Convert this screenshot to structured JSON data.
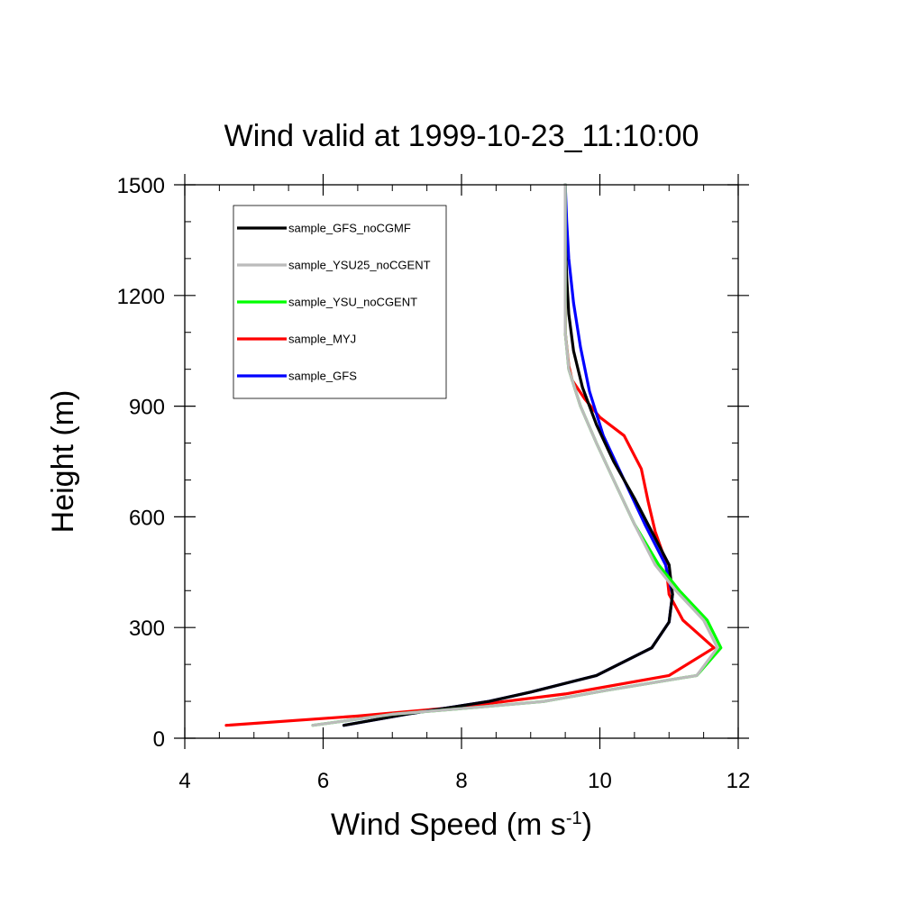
{
  "chart_data": {
    "type": "line",
    "title": "Wind valid at 1999-10-23_11:10:00",
    "xlabel": "Wind Speed (m s",
    "xlabel_superscript": "-1",
    "xlabel_suffix": ")",
    "ylabel": "Height (m)",
    "xlim": [
      4,
      12
    ],
    "ylim": [
      0,
      1500
    ],
    "xticks": [
      4,
      6,
      8,
      10,
      12
    ],
    "yticks": [
      0,
      300,
      600,
      900,
      1200,
      1500
    ],
    "xtick_labels": [
      "4",
      "6",
      "8",
      "10",
      "12"
    ],
    "ytick_labels": [
      "0",
      "300",
      "600",
      "900",
      "1200",
      "1500"
    ],
    "legend_position": "top-left",
    "grid": false,
    "series": [
      {
        "name": "sample_GFS_noCGMF",
        "color": "#000000",
        "points": [
          [
            6.3,
            35
          ],
          [
            7.2,
            65
          ],
          [
            8.4,
            100
          ],
          [
            9.0,
            125
          ],
          [
            9.95,
            170
          ],
          [
            10.75,
            245
          ],
          [
            11.0,
            315
          ],
          [
            11.05,
            390
          ],
          [
            11.0,
            470
          ],
          [
            10.75,
            560
          ],
          [
            10.5,
            650
          ],
          [
            10.2,
            750
          ],
          [
            9.95,
            850
          ],
          [
            9.75,
            950
          ],
          [
            9.62,
            1050
          ],
          [
            9.55,
            1150
          ],
          [
            9.52,
            1250
          ],
          [
            9.5,
            1350
          ],
          [
            9.5,
            1500
          ]
        ]
      },
      {
        "name": "sample_YSU25_noCGENT",
        "color": "#bbbbbb",
        "points": [
          [
            5.85,
            35
          ],
          [
            7.0,
            65
          ],
          [
            8.3,
            85
          ],
          [
            9.2,
            100
          ],
          [
            10.1,
            130
          ],
          [
            11.4,
            170
          ],
          [
            11.7,
            245
          ],
          [
            11.5,
            320
          ],
          [
            11.1,
            400
          ],
          [
            10.8,
            470
          ],
          [
            10.5,
            580
          ],
          [
            10.2,
            700
          ],
          [
            9.95,
            800
          ],
          [
            9.72,
            900
          ],
          [
            9.55,
            1000
          ],
          [
            9.5,
            1100
          ],
          [
            9.5,
            1300
          ],
          [
            9.5,
            1500
          ]
        ]
      },
      {
        "name": "sample_YSU_noCGENT",
        "color": "#00ff00",
        "points": [
          [
            5.85,
            35
          ],
          [
            7.0,
            65
          ],
          [
            8.3,
            85
          ],
          [
            9.2,
            100
          ],
          [
            10.1,
            130
          ],
          [
            11.4,
            170
          ],
          [
            11.75,
            245
          ],
          [
            11.55,
            320
          ],
          [
            11.15,
            400
          ],
          [
            10.85,
            470
          ],
          [
            10.5,
            580
          ],
          [
            10.2,
            700
          ],
          [
            9.95,
            800
          ],
          [
            9.72,
            900
          ],
          [
            9.55,
            1000
          ],
          [
            9.5,
            1100
          ],
          [
            9.5,
            1300
          ],
          [
            9.5,
            1500
          ]
        ]
      },
      {
        "name": "sample_MYJ",
        "color": "#ff0000",
        "points": [
          [
            4.6,
            35
          ],
          [
            6.5,
            60
          ],
          [
            8.0,
            85
          ],
          [
            9.5,
            120
          ],
          [
            11.0,
            170
          ],
          [
            11.65,
            245
          ],
          [
            11.2,
            320
          ],
          [
            11.0,
            390
          ],
          [
            10.95,
            480
          ],
          [
            10.8,
            560
          ],
          [
            10.7,
            640
          ],
          [
            10.6,
            730
          ],
          [
            10.35,
            820
          ],
          [
            10.0,
            870
          ],
          [
            9.78,
            920
          ],
          [
            9.6,
            970
          ],
          [
            9.55,
            1010
          ],
          [
            9.5,
            1100
          ],
          [
            9.5,
            1300
          ],
          [
            9.5,
            1500
          ]
        ]
      },
      {
        "name": "sample_GFS",
        "color": "#0000ff",
        "points": [
          [
            6.3,
            35
          ],
          [
            7.2,
            65
          ],
          [
            8.4,
            100
          ],
          [
            9.0,
            125
          ],
          [
            9.95,
            170
          ],
          [
            10.75,
            245
          ],
          [
            11.0,
            315
          ],
          [
            11.05,
            390
          ],
          [
            10.95,
            470
          ],
          [
            10.65,
            580
          ],
          [
            10.35,
            700
          ],
          [
            10.05,
            820
          ],
          [
            9.85,
            940
          ],
          [
            9.72,
            1060
          ],
          [
            9.62,
            1180
          ],
          [
            9.55,
            1300
          ],
          [
            9.52,
            1400
          ],
          [
            9.5,
            1500
          ]
        ]
      }
    ]
  }
}
